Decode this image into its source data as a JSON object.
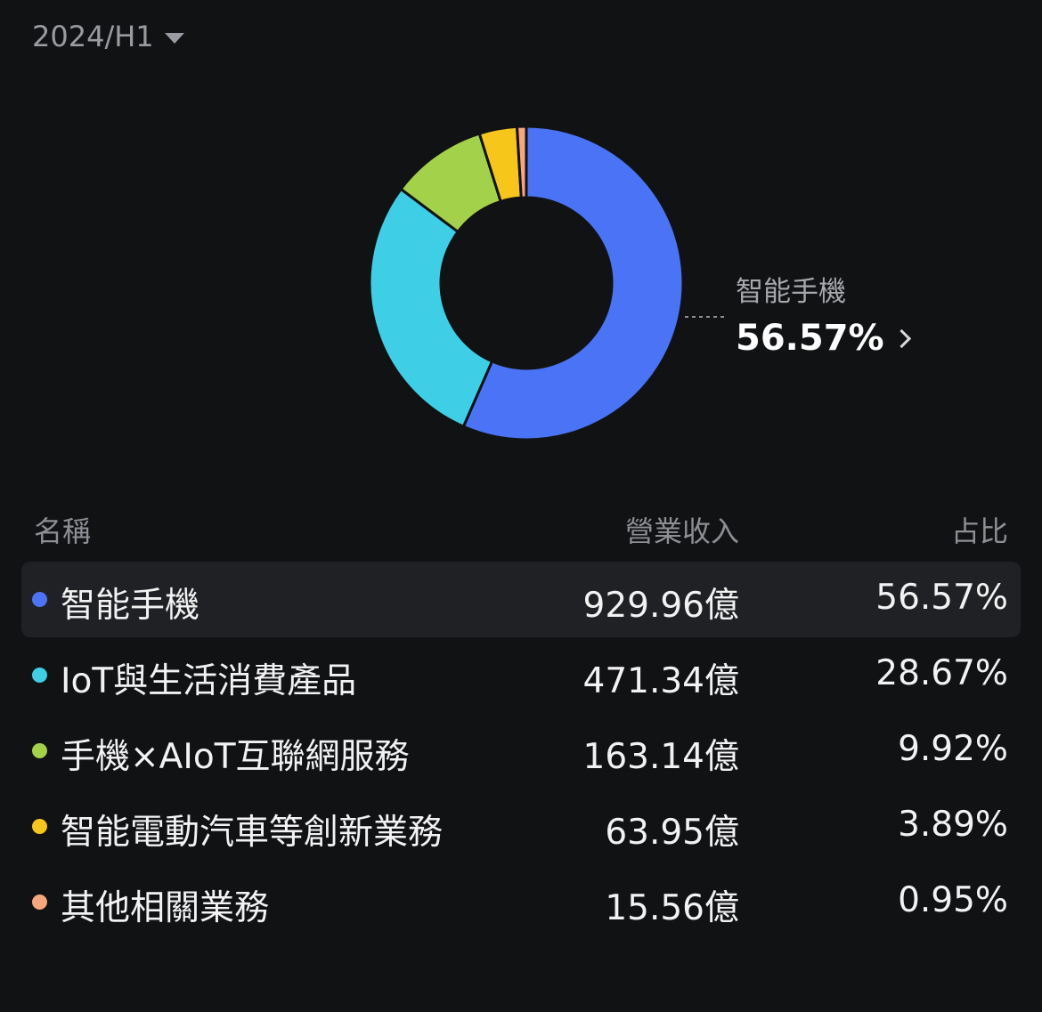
{
  "period": {
    "label": "2024/H1"
  },
  "callout": {
    "name": "智能手機",
    "value": "56.57%"
  },
  "table": {
    "headers": {
      "name": "名稱",
      "revenue": "營業收入",
      "share": "占比"
    }
  },
  "chart_data": {
    "type": "pie",
    "donut": true,
    "categories": [
      "智能手機",
      "IoT與生活消費產品",
      "手機×AIoT互聯網服務",
      "智能電動汽車等創新業務",
      "其他相關業務"
    ],
    "values": [
      929.96,
      471.34,
      163.14,
      63.95,
      15.56
    ],
    "value_labels": [
      "929.96億",
      "471.34億",
      "163.14億",
      "63.95億",
      "15.56億"
    ],
    "shares": [
      56.57,
      28.67,
      9.92,
      3.89,
      0.95
    ],
    "share_labels": [
      "56.57%",
      "28.67%",
      "9.92%",
      "3.89%",
      "0.95%"
    ],
    "colors": [
      "#4a74f5",
      "#3ecfe6",
      "#a3d24a",
      "#f7c61a",
      "#f7a77c"
    ],
    "selected_index": 0
  }
}
